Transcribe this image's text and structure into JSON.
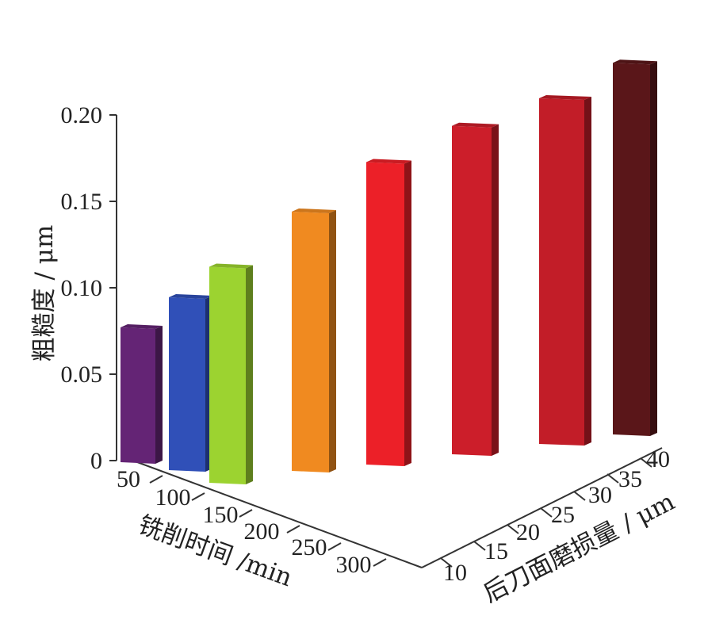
{
  "chart_data": {
    "type": "bar3d",
    "title": "",
    "zlabel": "粗糙度 / μm",
    "xlabel": "铣削时间 /min",
    "ylabel": "后刀面磨损量 / μm",
    "z_ticks": [
      "0",
      "0.05",
      "0.10",
      "0.15",
      "0.20"
    ],
    "z_range": [
      0,
      0.2
    ],
    "x_ticks": [
      "50",
      "100",
      "150",
      "200",
      "250",
      "300"
    ],
    "y_ticks": [
      "10",
      "15",
      "20",
      "25",
      "30",
      "35",
      "40"
    ],
    "bars": [
      {
        "time": 50,
        "wear": 10,
        "roughness": 0.078,
        "color": "#642475"
      },
      {
        "time": 100,
        "wear": 15,
        "roughness": 0.1,
        "color": "#3050b8"
      },
      {
        "time": 150,
        "wear": 20,
        "roughness": 0.125,
        "color": "#9cd330"
      },
      {
        "time": 200,
        "wear": 25,
        "roughness": 0.15,
        "color": "#f08a20"
      },
      {
        "time": 250,
        "wear": 30,
        "roughness": 0.175,
        "color": "#ec2028"
      },
      {
        "time": 300,
        "wear": 35,
        "roughness": 0.19,
        "color": "#cc1e2a"
      },
      {
        "time": 300,
        "wear": 38,
        "roughness": 0.2,
        "color": "#c21d28"
      },
      {
        "time": 300,
        "wear": 40,
        "roughness": 0.215,
        "color": "#5a1619"
      }
    ]
  }
}
